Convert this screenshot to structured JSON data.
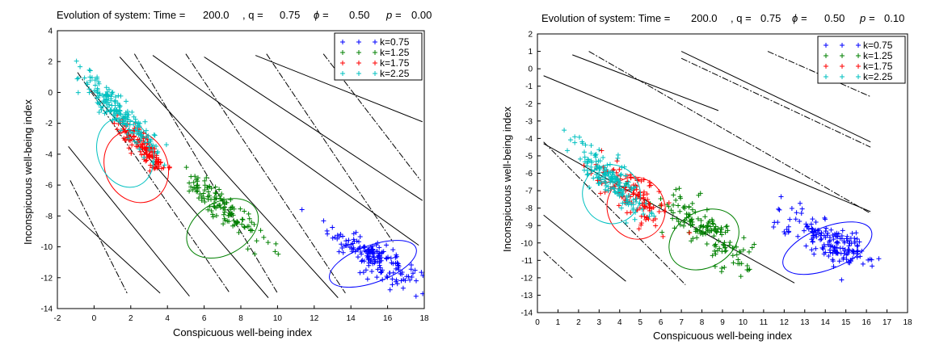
{
  "panels": [
    {
      "title_parts": {
        "prefix": "Evolution of system: Time =",
        "time": "200.0",
        "q_label": ", q =",
        "q": "0.75",
        "phi_label": "ϕ =",
        "phi": "0.50",
        "p_label": "p =",
        "p": "0.00"
      }
    },
    {
      "title_parts": {
        "prefix": "Evolution of system: Time =",
        "time": "200.0",
        "q_label": ", q =",
        "q": "0.75",
        "phi_label": "ϕ =",
        "phi": "0.50",
        "p_label": "p =",
        "p": "0.10"
      }
    }
  ],
  "colors": {
    "k075": "#0000ff",
    "k125": "#008000",
    "k175": "#ff0000",
    "k225": "#00c0c0",
    "lines": "#000000"
  },
  "chart_data": [
    {
      "type": "scatter",
      "xlabel": "Conspicuous well-being index",
      "ylabel": "Inconspicuous well-being index",
      "xlim": [
        -2,
        18
      ],
      "ylim": [
        -14,
        4
      ],
      "xticks": [
        -2,
        0,
        2,
        4,
        6,
        8,
        10,
        12,
        14,
        16,
        18
      ],
      "yticks": [
        -14,
        -12,
        -10,
        -8,
        -6,
        -4,
        -2,
        0,
        2,
        4
      ],
      "legend_position": "top-right",
      "series": [
        {
          "name": "k=0.75",
          "color": "#0000ff",
          "center": [
            15.2,
            -10.6
          ],
          "spread_major": 1.4,
          "spread_minor": 0.45,
          "angle_deg": -36,
          "count": 170,
          "ellipse": {
            "cx": 15.2,
            "cy": -11.1,
            "rx": 2.5,
            "ry": 1.2,
            "angle_deg": -20
          }
        },
        {
          "name": "k=1.25",
          "color": "#008000",
          "center": [
            7.0,
            -7.4
          ],
          "spread_major": 1.6,
          "spread_minor": 0.35,
          "angle_deg": -48,
          "count": 130,
          "ellipse": {
            "cx": 7.0,
            "cy": -8.8,
            "rx": 2.1,
            "ry": 1.7,
            "angle_deg": -30
          }
        },
        {
          "name": "k=1.75",
          "color": "#ff0000",
          "center": [
            2.6,
            -3.5
          ],
          "spread_major": 1.1,
          "spread_minor": 0.3,
          "angle_deg": -52,
          "count": 130,
          "ellipse": {
            "cx": 2.3,
            "cy": -4.8,
            "rx": 1.7,
            "ry": 2.4,
            "angle_deg": -25
          }
        },
        {
          "name": "k=2.25",
          "color": "#00c0c0",
          "center": [
            1.3,
            -1.2
          ],
          "spread_major": 1.6,
          "spread_minor": 0.35,
          "angle_deg": -52,
          "count": 180,
          "ellipse": {
            "cx": 1.7,
            "cy": -3.9,
            "rx": 1.5,
            "ry": 2.3,
            "angle_deg": -20
          }
        }
      ],
      "solid_lines": [
        {
          "x1": -0.5,
          "y1": 0.6,
          "x2": 9.5,
          "y2": -13.3
        },
        {
          "x1": 1.4,
          "y1": 2.3,
          "x2": 13.3,
          "y2": -13.3
        },
        {
          "x1": 3.2,
          "y1": 2.4,
          "x2": 17.7,
          "y2": -9.9
        },
        {
          "x1": 6.0,
          "y1": 2.3,
          "x2": 17.9,
          "y2": -7.0
        },
        {
          "x1": 8.8,
          "y1": 2.4,
          "x2": 17.9,
          "y2": -1.9
        },
        {
          "x1": -1.4,
          "y1": -3.5,
          "x2": 5.2,
          "y2": -13.2
        },
        {
          "x1": -1.4,
          "y1": -7.6,
          "x2": 3.6,
          "y2": -13.0
        }
      ],
      "dash_lines": [
        {
          "x1": -0.9,
          "y1": 1.3,
          "x2": 7.4,
          "y2": -13.0
        },
        {
          "x1": 2.2,
          "y1": 2.5,
          "x2": 10.0,
          "y2": -13.0
        },
        {
          "x1": 5.0,
          "y1": 2.5,
          "x2": 13.7,
          "y2": -13.0
        },
        {
          "x1": 9.4,
          "y1": 2.5,
          "x2": 16.3,
          "y2": -9.7
        },
        {
          "x1": 12.5,
          "y1": 2.5,
          "x2": 17.8,
          "y2": -5.7
        },
        {
          "x1": -1.3,
          "y1": -5.7,
          "x2": 1.8,
          "y2": -13.0
        }
      ]
    },
    {
      "type": "scatter",
      "xlabel": "Conspicuous well-being index",
      "ylabel": "Inconspicuous well-being index",
      "xlim": [
        0,
        18
      ],
      "ylim": [
        -14,
        2
      ],
      "xticks": [
        0,
        1,
        2,
        3,
        4,
        5,
        6,
        7,
        8,
        9,
        10,
        11,
        12,
        13,
        14,
        15,
        16,
        17,
        18
      ],
      "yticks": [
        -14,
        -13,
        -12,
        -11,
        -10,
        -9,
        -8,
        -7,
        -6,
        -5,
        -4,
        -3,
        -2,
        -1,
        0,
        1,
        2
      ],
      "legend_position": "top-right",
      "series": [
        {
          "name": "k=0.75",
          "color": "#0000ff",
          "center": [
            14.3,
            -9.9
          ],
          "spread_major": 1.3,
          "spread_minor": 0.45,
          "angle_deg": -33,
          "count": 170,
          "ellipse": {
            "cx": 14.1,
            "cy": -10.3,
            "rx": 2.3,
            "ry": 1.2,
            "angle_deg": -22
          }
        },
        {
          "name": "k=1.25",
          "color": "#008000",
          "center": [
            8.2,
            -9.2
          ],
          "spread_major": 1.5,
          "spread_minor": 0.5,
          "angle_deg": -47,
          "count": 150,
          "ellipse": {
            "cx": 8.1,
            "cy": -9.8,
            "rx": 1.8,
            "ry": 1.6,
            "angle_deg": -30
          }
        },
        {
          "name": "k=1.75",
          "color": "#ff0000",
          "center": [
            4.6,
            -7.3
          ],
          "spread_major": 1.2,
          "spread_minor": 0.5,
          "angle_deg": -47,
          "count": 130,
          "ellipse": {
            "cx": 4.8,
            "cy": -8.0,
            "rx": 1.4,
            "ry": 1.8,
            "angle_deg": -20
          }
        },
        {
          "name": "k=2.25",
          "color": "#00c0c0",
          "center": [
            3.5,
            -6.2
          ],
          "spread_major": 1.3,
          "spread_minor": 0.35,
          "angle_deg": -52,
          "count": 170,
          "ellipse": {
            "cx": 3.6,
            "cy": -7.2,
            "rx": 1.4,
            "ry": 1.7,
            "angle_deg": -25
          }
        }
      ],
      "solid_lines": [
        {
          "x1": 0.3,
          "y1": -0.4,
          "x2": 16.2,
          "y2": -8.2
        },
        {
          "x1": 1.7,
          "y1": 0.8,
          "x2": 8.8,
          "y2": -2.4
        },
        {
          "x1": 0.3,
          "y1": -4.3,
          "x2": 12.5,
          "y2": -12.3
        },
        {
          "x1": 7.0,
          "y1": 1.0,
          "x2": 16.2,
          "y2": -4.2
        },
        {
          "x1": 0.3,
          "y1": -8.4,
          "x2": 4.3,
          "y2": -12.2
        }
      ],
      "dash_lines": [
        {
          "x1": 2.5,
          "y1": 1.0,
          "x2": 16.2,
          "y2": -8.3
        },
        {
          "x1": 7.0,
          "y1": 0.6,
          "x2": 16.2,
          "y2": -4.5
        },
        {
          "x1": 11.2,
          "y1": 1.0,
          "x2": 16.2,
          "y2": -1.6
        },
        {
          "x1": 0.3,
          "y1": -4.2,
          "x2": 7.2,
          "y2": -12.4
        },
        {
          "x1": 0.3,
          "y1": -10.5,
          "x2": 1.7,
          "y2": -12.0
        }
      ]
    }
  ]
}
